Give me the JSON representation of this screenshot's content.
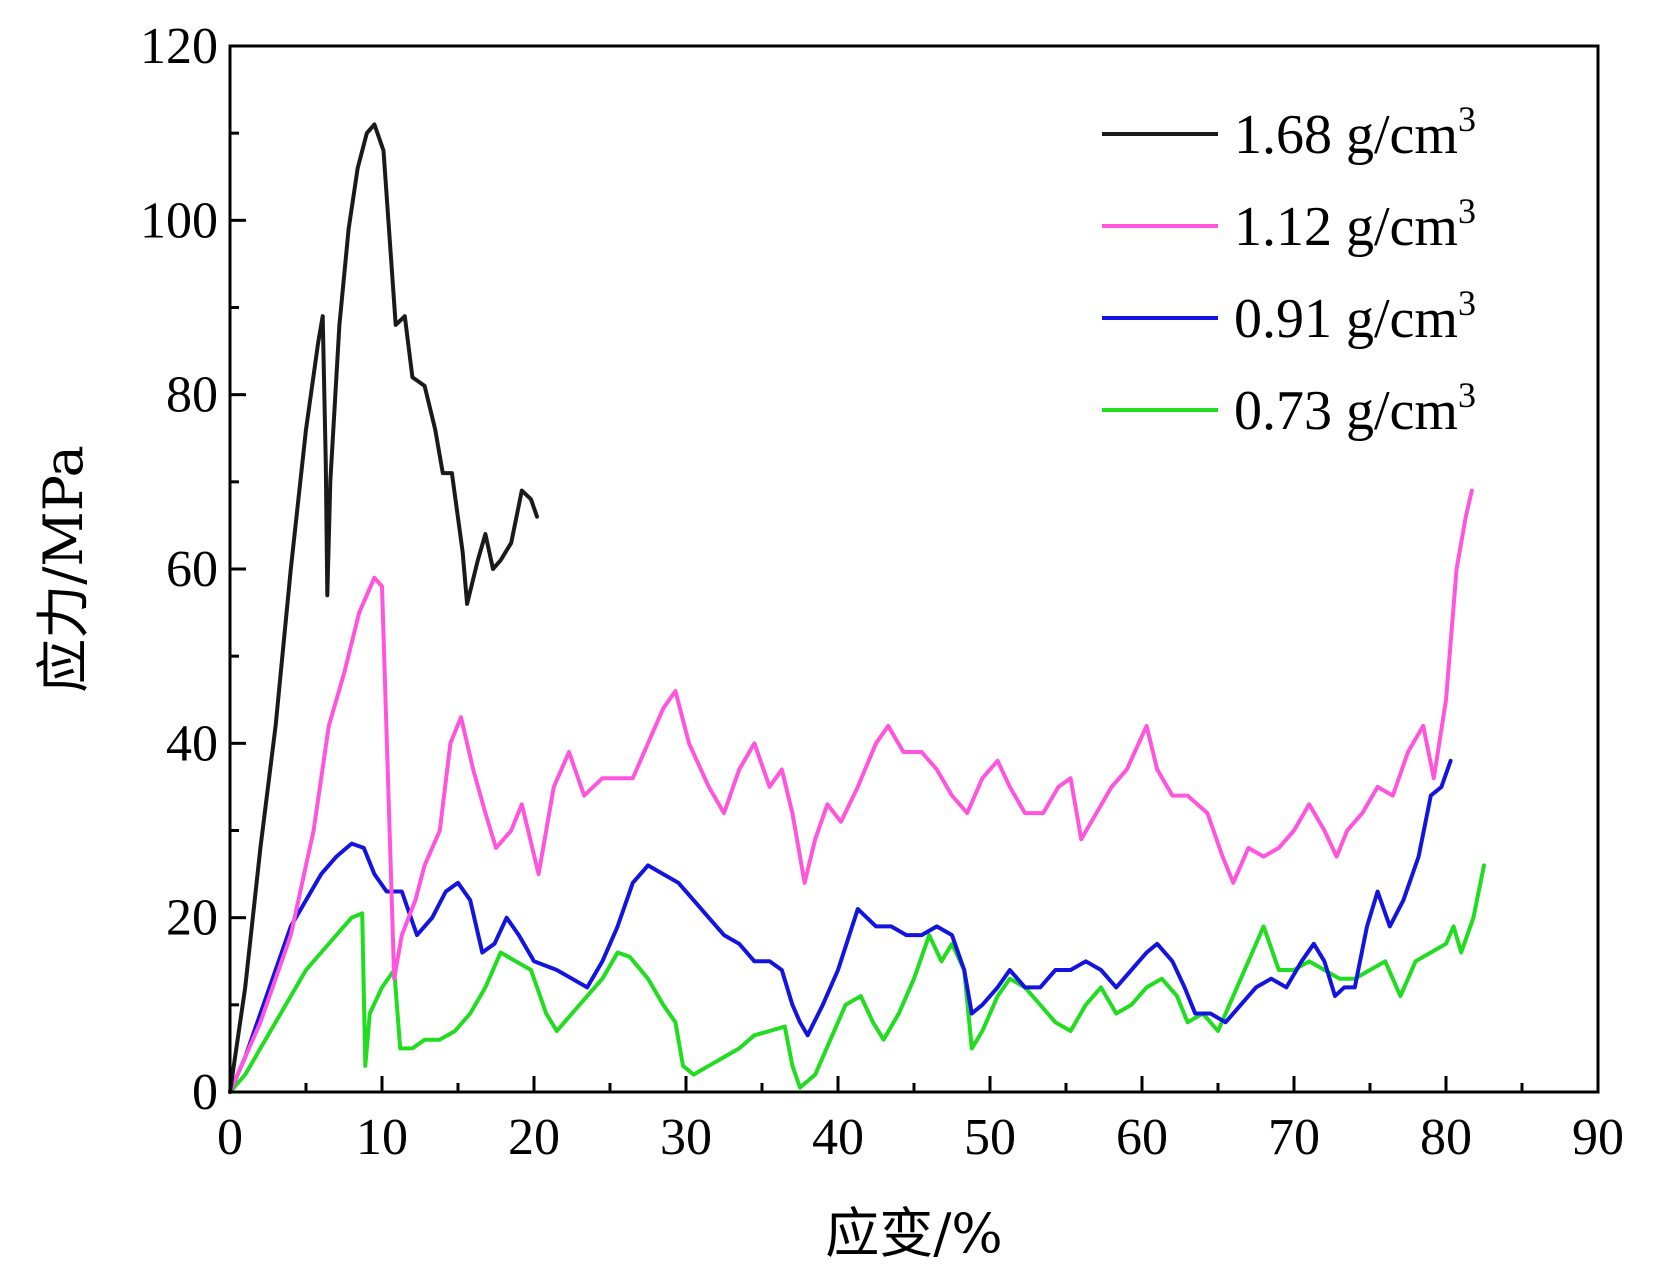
{
  "chart_data": {
    "type": "line",
    "xlabel": "应变/%",
    "ylabel": "应力/MPa",
    "xlim": [
      0,
      90
    ],
    "ylim": [
      0,
      120
    ],
    "xticks": [
      0,
      10,
      20,
      30,
      40,
      50,
      60,
      70,
      80,
      90
    ],
    "yticks": [
      0,
      20,
      40,
      60,
      80,
      100,
      120
    ],
    "grid": false,
    "legend_position": "top-right",
    "series": [
      {
        "name": "1.68 g/cm",
        "name_sup": "3",
        "color": "#1a1a1a",
        "points": [
          [
            0,
            0
          ],
          [
            1,
            12
          ],
          [
            2,
            28
          ],
          [
            3,
            42
          ],
          [
            4,
            60
          ],
          [
            5,
            76
          ],
          [
            5.8,
            86
          ],
          [
            6.1,
            89
          ],
          [
            6.3,
            72
          ],
          [
            6.4,
            57
          ],
          [
            6.6,
            70
          ],
          [
            7.2,
            88
          ],
          [
            7.8,
            99
          ],
          [
            8.4,
            106
          ],
          [
            9.0,
            110
          ],
          [
            9.5,
            111
          ],
          [
            10.1,
            108
          ],
          [
            10.5,
            98
          ],
          [
            10.9,
            88
          ],
          [
            11.5,
            89
          ],
          [
            12,
            82
          ],
          [
            12.8,
            81
          ],
          [
            13.5,
            76
          ],
          [
            14.0,
            71
          ],
          [
            14.6,
            71
          ],
          [
            15.3,
            62
          ],
          [
            15.6,
            56
          ],
          [
            16.3,
            61
          ],
          [
            16.8,
            64
          ],
          [
            17.3,
            60
          ],
          [
            17.8,
            61
          ],
          [
            18.5,
            63
          ],
          [
            19.2,
            69
          ],
          [
            19.8,
            68
          ],
          [
            20.2,
            66
          ]
        ]
      },
      {
        "name": "1.12 g/cm",
        "name_sup": "3",
        "color": "#ff55dd",
        "points": [
          [
            0,
            0
          ],
          [
            2,
            8
          ],
          [
            4,
            18
          ],
          [
            5.5,
            30
          ],
          [
            6.5,
            42
          ],
          [
            7.5,
            48
          ],
          [
            8.5,
            55
          ],
          [
            9.5,
            59
          ],
          [
            10.0,
            58
          ],
          [
            10.5,
            30
          ],
          [
            10.8,
            13
          ],
          [
            11.3,
            18
          ],
          [
            12.2,
            22
          ],
          [
            12.8,
            26
          ],
          [
            13.8,
            30
          ],
          [
            14.5,
            40
          ],
          [
            15.2,
            43
          ],
          [
            16,
            37
          ],
          [
            16.8,
            32
          ],
          [
            17.5,
            28
          ],
          [
            18.5,
            30
          ],
          [
            19.2,
            33
          ],
          [
            20.3,
            25
          ],
          [
            21.3,
            35
          ],
          [
            22.3,
            39
          ],
          [
            23.3,
            34
          ],
          [
            24.5,
            36
          ],
          [
            25.5,
            36
          ],
          [
            26.5,
            36
          ],
          [
            27.5,
            40
          ],
          [
            28.5,
            44
          ],
          [
            29.3,
            46
          ],
          [
            30.2,
            40
          ],
          [
            31.5,
            35
          ],
          [
            32.5,
            32
          ],
          [
            33.5,
            37
          ],
          [
            34.5,
            40
          ],
          [
            35.5,
            35
          ],
          [
            36.3,
            37
          ],
          [
            37.0,
            32
          ],
          [
            37.8,
            24
          ],
          [
            38.5,
            29
          ],
          [
            39.3,
            33
          ],
          [
            40.2,
            31
          ],
          [
            41.3,
            35
          ],
          [
            42.5,
            40
          ],
          [
            43.3,
            42
          ],
          [
            44.3,
            39
          ],
          [
            45.5,
            39
          ],
          [
            46.5,
            37
          ],
          [
            47.5,
            34
          ],
          [
            48.5,
            32
          ],
          [
            49.5,
            36
          ],
          [
            50.5,
            38
          ],
          [
            51.3,
            35
          ],
          [
            52.3,
            32
          ],
          [
            53.5,
            32
          ],
          [
            54.5,
            35
          ],
          [
            55.3,
            36
          ],
          [
            56.0,
            29
          ],
          [
            57.0,
            32
          ],
          [
            58.0,
            35
          ],
          [
            59.0,
            37
          ],
          [
            60.3,
            42
          ],
          [
            61.0,
            37
          ],
          [
            62.0,
            34
          ],
          [
            63.0,
            34
          ],
          [
            64.3,
            32
          ],
          [
            65.3,
            27
          ],
          [
            66.0,
            24
          ],
          [
            67.0,
            28
          ],
          [
            68.0,
            27
          ],
          [
            69.0,
            28
          ],
          [
            70.0,
            30
          ],
          [
            71.0,
            33
          ],
          [
            72.0,
            30
          ],
          [
            72.8,
            27
          ],
          [
            73.5,
            30
          ],
          [
            74.5,
            32
          ],
          [
            75.5,
            35
          ],
          [
            76.5,
            34
          ],
          [
            77.5,
            39
          ],
          [
            78.5,
            42
          ],
          [
            79.2,
            36
          ],
          [
            80.0,
            45
          ],
          [
            80.7,
            60
          ],
          [
            81.3,
            66
          ],
          [
            81.7,
            69
          ]
        ]
      },
      {
        "name": "0.91 g/cm",
        "name_sup": "3",
        "color": "#1414e0",
        "points": [
          [
            0,
            0
          ],
          [
            1,
            4
          ],
          [
            2,
            9
          ],
          [
            3,
            14
          ],
          [
            4,
            19
          ],
          [
            5,
            22
          ],
          [
            6,
            25
          ],
          [
            7,
            27
          ],
          [
            8,
            28.5
          ],
          [
            8.8,
            28
          ],
          [
            9.5,
            25
          ],
          [
            10.3,
            23
          ],
          [
            11.3,
            23
          ],
          [
            12.3,
            18
          ],
          [
            13.3,
            20
          ],
          [
            14.2,
            23
          ],
          [
            15.0,
            24
          ],
          [
            15.8,
            22
          ],
          [
            16.6,
            16
          ],
          [
            17.4,
            17
          ],
          [
            18.2,
            20
          ],
          [
            19.0,
            18
          ],
          [
            20.0,
            15
          ],
          [
            21.5,
            14
          ],
          [
            22.5,
            13
          ],
          [
            23.5,
            12
          ],
          [
            24.5,
            15
          ],
          [
            25.5,
            19
          ],
          [
            26.5,
            24
          ],
          [
            27.5,
            26
          ],
          [
            28.5,
            25
          ],
          [
            29.5,
            24
          ],
          [
            30.5,
            22
          ],
          [
            31.5,
            20
          ],
          [
            32.5,
            18
          ],
          [
            33.5,
            17
          ],
          [
            34.5,
            15
          ],
          [
            35.5,
            15
          ],
          [
            36.3,
            14
          ],
          [
            37.0,
            10
          ],
          [
            37.5,
            8
          ],
          [
            38.0,
            6.5
          ],
          [
            39.0,
            10
          ],
          [
            40.0,
            14
          ],
          [
            41.3,
            21
          ],
          [
            42.5,
            19
          ],
          [
            43.5,
            19
          ],
          [
            44.5,
            18
          ],
          [
            45.5,
            18
          ],
          [
            46.5,
            19
          ],
          [
            47.5,
            18
          ],
          [
            48.3,
            14
          ],
          [
            48.8,
            9
          ],
          [
            49.5,
            10
          ],
          [
            50.5,
            12
          ],
          [
            51.3,
            14
          ],
          [
            52.3,
            12
          ],
          [
            53.3,
            12
          ],
          [
            54.3,
            14
          ],
          [
            55.3,
            14
          ],
          [
            56.3,
            15
          ],
          [
            57.3,
            14
          ],
          [
            58.3,
            12
          ],
          [
            59.3,
            14
          ],
          [
            60.3,
            16
          ],
          [
            61.0,
            17
          ],
          [
            62.0,
            15
          ],
          [
            62.8,
            12
          ],
          [
            63.5,
            9
          ],
          [
            64.5,
            9
          ],
          [
            65.5,
            8
          ],
          [
            66.5,
            10
          ],
          [
            67.5,
            12
          ],
          [
            68.5,
            13
          ],
          [
            69.5,
            12
          ],
          [
            70.5,
            15
          ],
          [
            71.3,
            17
          ],
          [
            72.0,
            15
          ],
          [
            72.7,
            11
          ],
          [
            73.3,
            12
          ],
          [
            74.0,
            12
          ],
          [
            74.8,
            19
          ],
          [
            75.5,
            23
          ],
          [
            76.3,
            19
          ],
          [
            77.2,
            22
          ],
          [
            78.2,
            27
          ],
          [
            79.0,
            34
          ],
          [
            79.7,
            35
          ],
          [
            80.3,
            38
          ]
        ]
      },
      {
        "name": "0.73 g/cm",
        "name_sup": "3",
        "color": "#20dd20",
        "points": [
          [
            0,
            0
          ],
          [
            1,
            2
          ],
          [
            2,
            5
          ],
          [
            3,
            8
          ],
          [
            4,
            11
          ],
          [
            5,
            14
          ],
          [
            6,
            16
          ],
          [
            7,
            18
          ],
          [
            8,
            20
          ],
          [
            8.7,
            20.5
          ],
          [
            8.9,
            3
          ],
          [
            9.2,
            9
          ],
          [
            10.0,
            12
          ],
          [
            10.8,
            14
          ],
          [
            11.2,
            5
          ],
          [
            12.0,
            5
          ],
          [
            12.8,
            6
          ],
          [
            13.8,
            6
          ],
          [
            14.8,
            7
          ],
          [
            15.8,
            9
          ],
          [
            16.8,
            12
          ],
          [
            17.8,
            16
          ],
          [
            18.8,
            15
          ],
          [
            19.8,
            14
          ],
          [
            20.8,
            9
          ],
          [
            21.5,
            7
          ],
          [
            22.5,
            9
          ],
          [
            23.5,
            11
          ],
          [
            24.5,
            13
          ],
          [
            25.5,
            16
          ],
          [
            26.3,
            15.5
          ],
          [
            27.5,
            13
          ],
          [
            28.5,
            10
          ],
          [
            29.3,
            8
          ],
          [
            29.8,
            3
          ],
          [
            30.5,
            2
          ],
          [
            31.5,
            3
          ],
          [
            32.5,
            4
          ],
          [
            33.5,
            5
          ],
          [
            34.5,
            6.5
          ],
          [
            35.5,
            7
          ],
          [
            36.5,
            7.5
          ],
          [
            37.0,
            3
          ],
          [
            37.5,
            0.5
          ],
          [
            38.5,
            2
          ],
          [
            39.5,
            6
          ],
          [
            40.5,
            10
          ],
          [
            41.5,
            11
          ],
          [
            42.3,
            8
          ],
          [
            43.0,
            6
          ],
          [
            44.0,
            9
          ],
          [
            45.0,
            13
          ],
          [
            46.0,
            18
          ],
          [
            46.8,
            15
          ],
          [
            47.5,
            17
          ],
          [
            48.3,
            14
          ],
          [
            48.8,
            5
          ],
          [
            49.5,
            7
          ],
          [
            50.5,
            11
          ],
          [
            51.3,
            13
          ],
          [
            52.3,
            12
          ],
          [
            53.3,
            10
          ],
          [
            54.3,
            8
          ],
          [
            55.3,
            7
          ],
          [
            56.3,
            10
          ],
          [
            57.3,
            12
          ],
          [
            58.3,
            9
          ],
          [
            59.3,
            10
          ],
          [
            60.3,
            12
          ],
          [
            61.3,
            13
          ],
          [
            62.3,
            11
          ],
          [
            63.0,
            8
          ],
          [
            64.0,
            9
          ],
          [
            65.0,
            7
          ],
          [
            66.0,
            11
          ],
          [
            67.0,
            15
          ],
          [
            68.0,
            19
          ],
          [
            69.0,
            14
          ],
          [
            70.0,
            14
          ],
          [
            71.0,
            15
          ],
          [
            72.0,
            14
          ],
          [
            73.0,
            13
          ],
          [
            74.0,
            13
          ],
          [
            75.0,
            14
          ],
          [
            76.0,
            15
          ],
          [
            77.0,
            11
          ],
          [
            78.0,
            15
          ],
          [
            79.0,
            16
          ],
          [
            80.0,
            17
          ],
          [
            80.5,
            19
          ],
          [
            81.0,
            16
          ],
          [
            81.8,
            20
          ],
          [
            82.5,
            26
          ]
        ]
      }
    ]
  }
}
